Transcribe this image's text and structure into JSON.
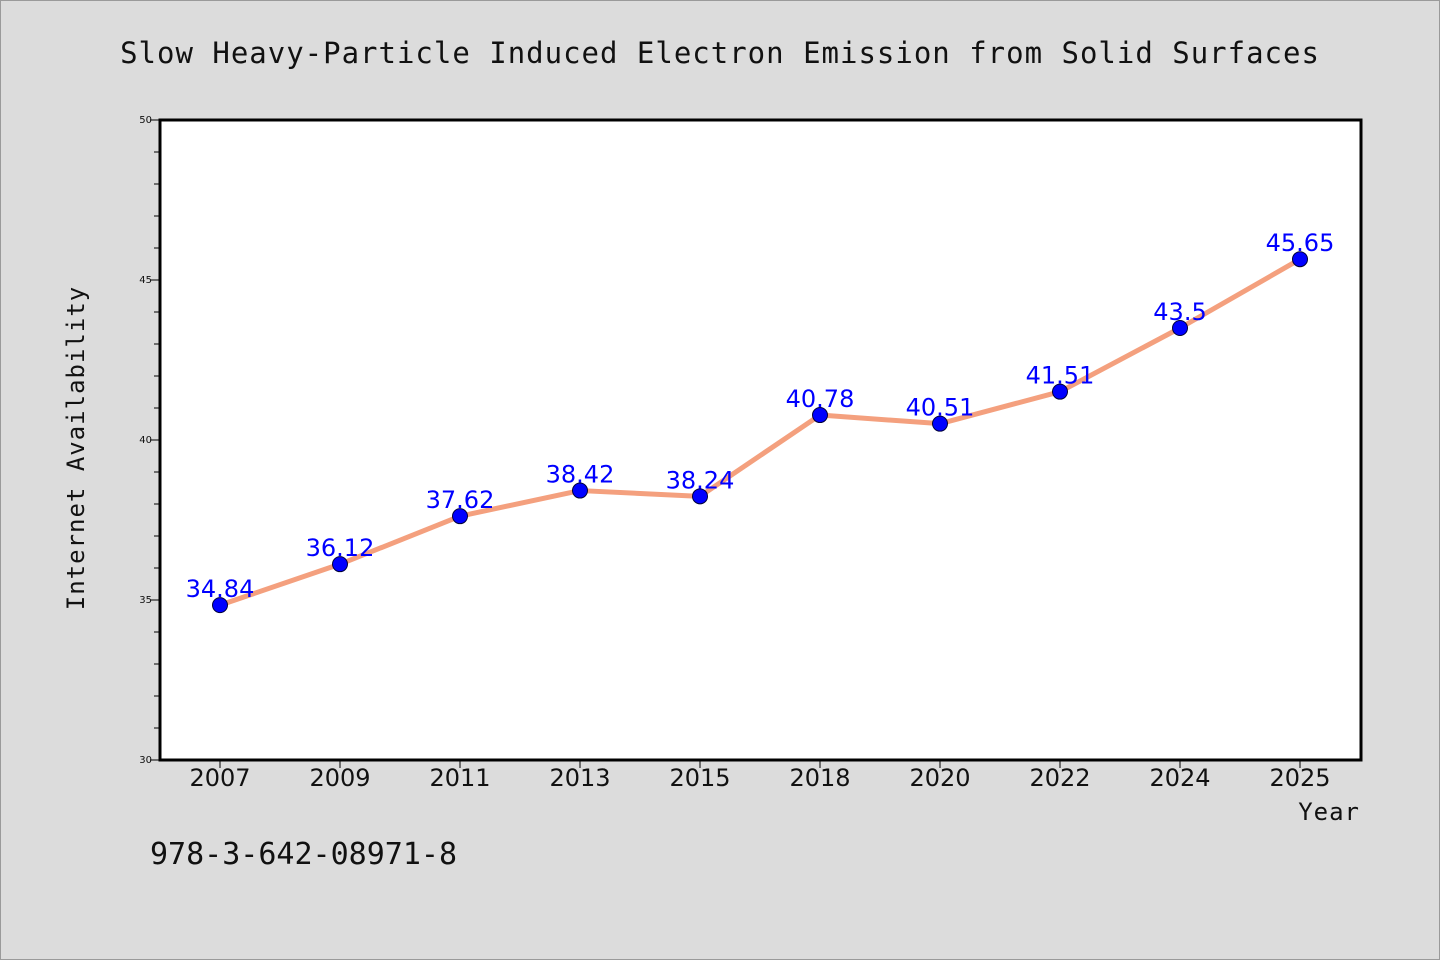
{
  "chart_data": {
    "type": "line",
    "title": "Slow Heavy-Particle Induced Electron Emission from Solid Surfaces",
    "xlabel": "Year",
    "ylabel": "Internet Availability",
    "categories": [
      "2007",
      "2009",
      "2011",
      "2013",
      "2015",
      "2018",
      "2020",
      "2022",
      "2024",
      "2025"
    ],
    "series": [
      {
        "values": [
          34.84,
          36.12,
          37.62,
          38.42,
          38.24,
          40.78,
          40.51,
          41.51,
          43.5,
          45.65
        ],
        "data_labels": [
          "34.84",
          "36.12",
          "37.62",
          "38.42",
          "38.24",
          "40.78",
          "40.51",
          "41.51",
          "43.5",
          "45.65"
        ]
      }
    ],
    "ylim": [
      30,
      50
    ],
    "yticks": [
      "30",
      "35",
      "40",
      "45",
      "50"
    ],
    "grid": false,
    "line_color": "#f4a07e",
    "marker_color": "#0000ff",
    "label_color": "#0000ff",
    "background_color": "#dcdcdc",
    "plot_background_color": "#ffffff"
  },
  "footer": {
    "isbn": "978-3-642-08971-8"
  }
}
